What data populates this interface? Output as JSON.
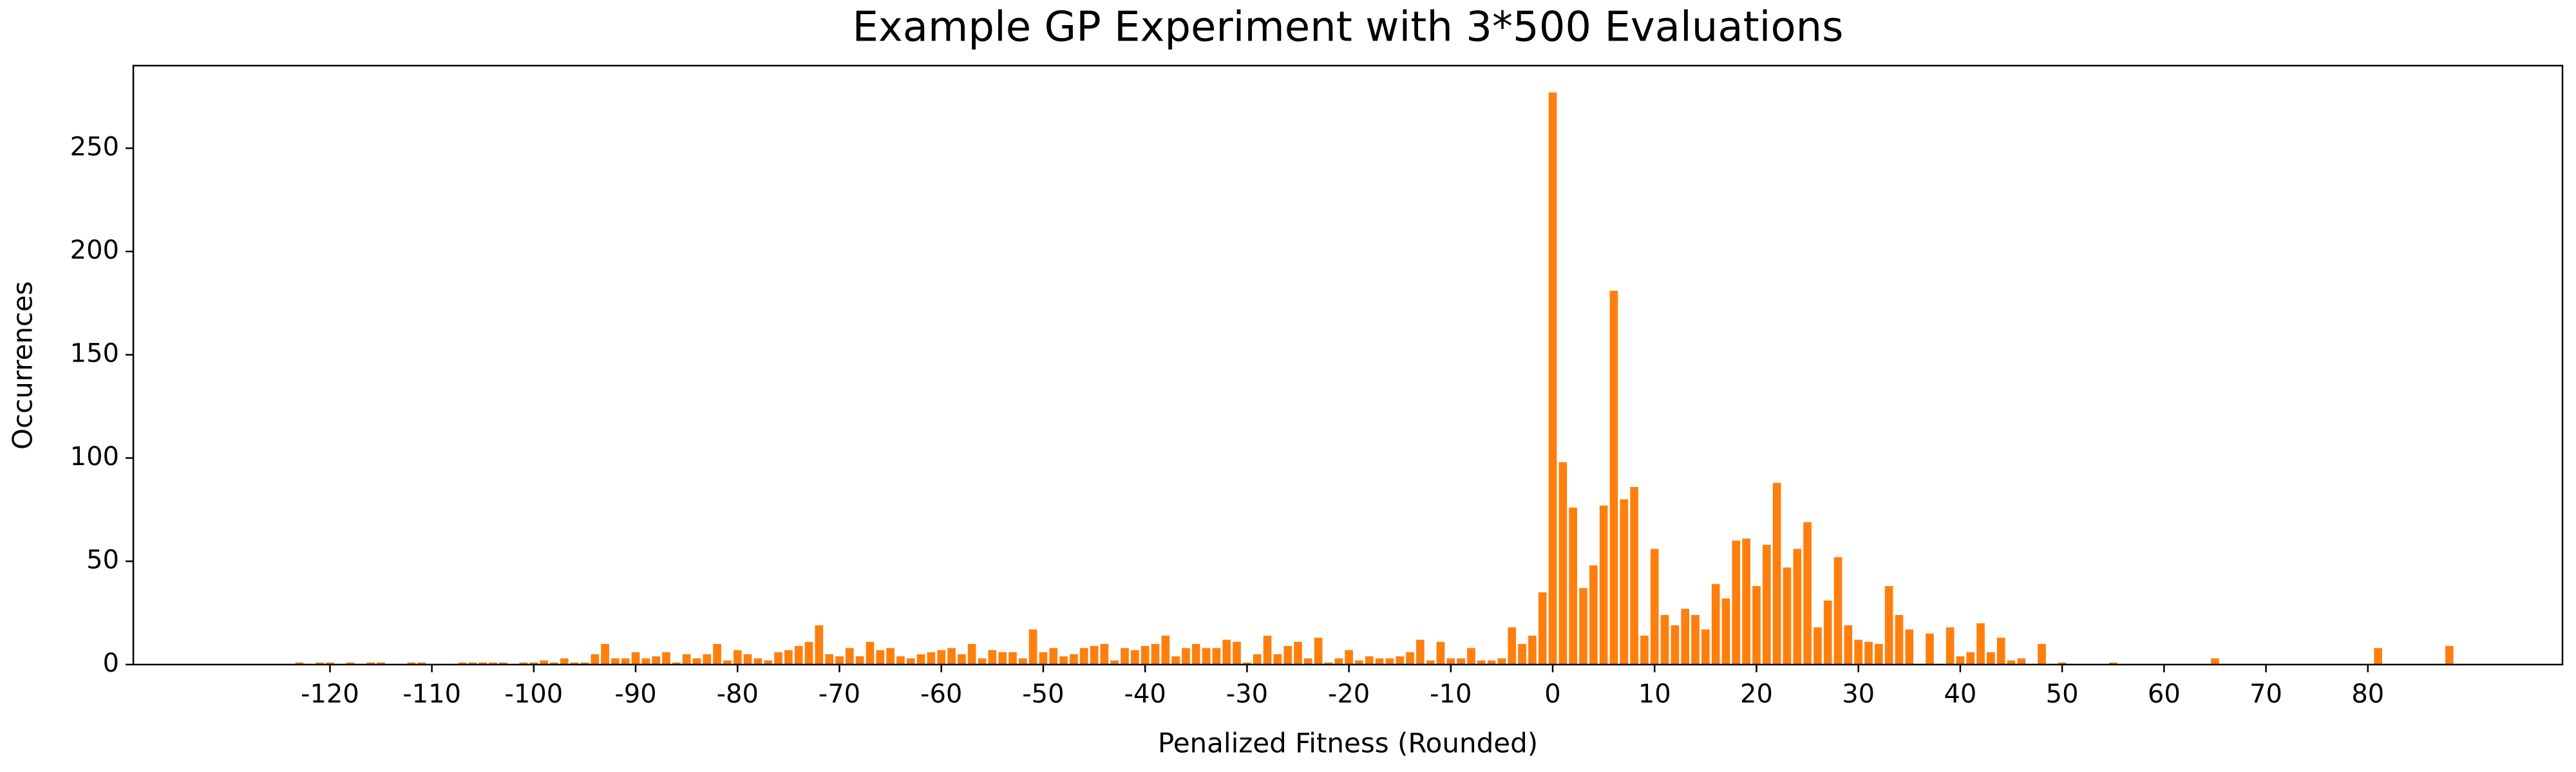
{
  "chart_data": {
    "type": "bar",
    "title": "Example GP Experiment with 3*500 Evaluations",
    "xlabel": "Penalized Fitness (Rounded)",
    "ylabel": "Occurrences",
    "color": "#ff7f0e",
    "x": [
      -125,
      -124,
      -123,
      -122,
      -121,
      -120,
      -119,
      -118,
      -117,
      -116,
      -115,
      -114,
      -113,
      -112,
      -111,
      -110,
      -109,
      -108,
      -107,
      -106,
      -105,
      -104,
      -103,
      -102,
      -101,
      -100,
      -99,
      -98,
      -97,
      -96,
      -95,
      -94,
      -93,
      -92,
      -91,
      -90,
      -89,
      -88,
      -87,
      -86,
      -85,
      -84,
      -83,
      -82,
      -81,
      -80,
      -79,
      -78,
      -77,
      -76,
      -75,
      -74,
      -73,
      -72,
      -71,
      -70,
      -69,
      -68,
      -67,
      -66,
      -65,
      -64,
      -63,
      -62,
      -61,
      -60,
      -59,
      -58,
      -57,
      -56,
      -55,
      -54,
      -53,
      -52,
      -51,
      -50,
      -49,
      -48,
      -47,
      -46,
      -45,
      -44,
      -43,
      -42,
      -41,
      -40,
      -39,
      -38,
      -37,
      -36,
      -35,
      -34,
      -33,
      -32,
      -31,
      -30,
      -29,
      -28,
      -27,
      -26,
      -25,
      -24,
      -23,
      -22,
      -21,
      -20,
      -19,
      -18,
      -17,
      -16,
      -15,
      -14,
      -13,
      -12,
      -11,
      -10,
      -9,
      -8,
      -7,
      -6,
      -5,
      -4,
      -3,
      -2,
      -1,
      0,
      1,
      2,
      3,
      4,
      5,
      6,
      7,
      8,
      9,
      10,
      11,
      12,
      13,
      14,
      15,
      16,
      17,
      18,
      19,
      20,
      21,
      22,
      23,
      24,
      25,
      26,
      27,
      28,
      29,
      30,
      31,
      32,
      33,
      34,
      35,
      36,
      37,
      38,
      39,
      40,
      41,
      42,
      43,
      44,
      45,
      46,
      47,
      48,
      49,
      50,
      51,
      52,
      53,
      54,
      55,
      56,
      57,
      58,
      59,
      60,
      61,
      62,
      63,
      64,
      65,
      66,
      67,
      68,
      69,
      70,
      71,
      72,
      73,
      74,
      75,
      76,
      77,
      78,
      79,
      80,
      81,
      82,
      83,
      84,
      85,
      86,
      87,
      88
    ],
    "values": [
      0,
      0,
      1,
      0,
      1,
      1,
      0,
      1,
      0,
      1,
      1,
      0,
      0,
      1,
      1,
      0,
      0,
      0,
      1,
      1,
      1,
      1,
      1,
      0,
      1,
      1,
      2,
      1,
      3,
      1,
      1,
      5,
      10,
      3,
      3,
      6,
      3,
      4,
      6,
      1,
      5,
      3,
      5,
      10,
      2,
      7,
      5,
      3,
      2,
      6,
      7,
      9,
      11,
      19,
      5,
      4,
      8,
      4,
      11,
      7,
      8,
      4,
      3,
      5,
      6,
      7,
      8,
      5,
      10,
      3,
      7,
      6,
      6,
      3,
      17,
      6,
      8,
      4,
      5,
      8,
      9,
      10,
      2,
      8,
      7,
      9,
      10,
      14,
      4,
      8,
      10,
      8,
      8,
      12,
      11,
      1,
      5,
      14,
      5,
      9,
      11,
      3,
      13,
      1,
      3,
      7,
      2,
      4,
      3,
      3,
      4,
      6,
      12,
      2,
      11,
      3,
      3,
      8,
      2,
      2,
      3,
      18,
      10,
      14,
      35,
      277,
      98,
      76,
      37,
      48,
      77,
      181,
      80,
      86,
      14,
      56,
      24,
      19,
      27,
      24,
      17,
      39,
      32,
      60,
      61,
      38,
      58,
      88,
      47,
      56,
      69,
      18,
      31,
      52,
      19,
      12,
      11,
      10,
      38,
      24,
      17,
      0,
      15,
      0,
      18,
      4,
      6,
      20,
      6,
      13,
      2,
      3,
      0,
      10,
      0,
      1,
      0,
      0,
      0,
      0,
      1,
      0,
      0,
      0,
      0,
      0,
      0,
      0,
      0,
      0,
      3,
      0,
      0,
      0,
      0,
      0,
      0,
      0,
      0,
      0,
      0,
      0,
      0,
      0,
      0,
      0,
      8,
      0,
      0,
      0,
      0,
      0,
      0,
      9
    ],
    "xlim": [
      -139.3,
      99.1
    ],
    "xticks": [
      -120,
      -110,
      -100,
      -90,
      -80,
      -70,
      -60,
      -50,
      -40,
      -30,
      -20,
      -10,
      0,
      10,
      20,
      30,
      40,
      50,
      60,
      70,
      80
    ],
    "ylim": [
      0,
      290
    ],
    "yticks": [
      0,
      50,
      100,
      150,
      200,
      250
    ]
  }
}
